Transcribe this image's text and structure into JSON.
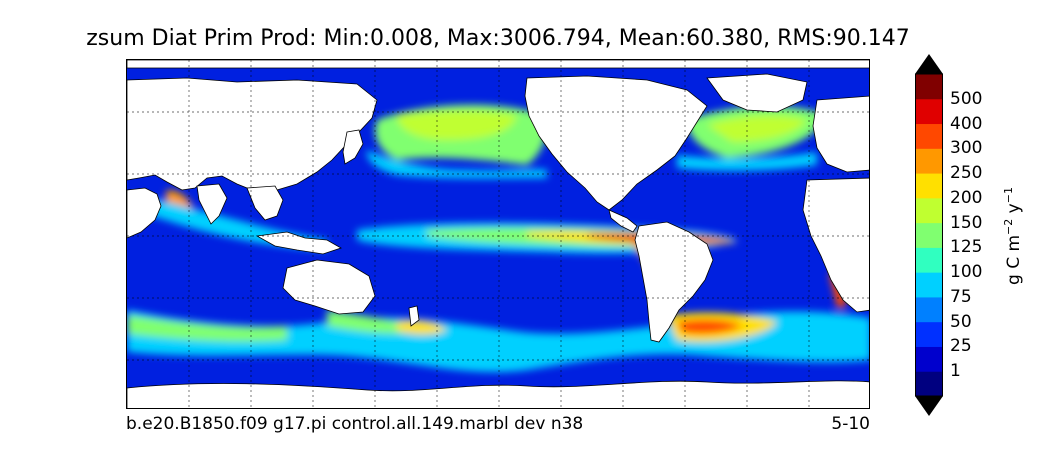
{
  "title": "zsum Diat Prim Prod: Min:0.008, Max:3006.794, Mean:60.380, RMS:90.147",
  "footer": {
    "case_name": "b.e20.B1850.f09 g17.pi control.all.149.marbl dev n38",
    "years": "5-10"
  },
  "colorbar": {
    "units_base": "g C m",
    "units_exp1": "−2",
    "units_mid": " y",
    "units_exp2": "−1",
    "levels": [
      "1",
      "25",
      "50",
      "75",
      "100",
      "125",
      "150",
      "200",
      "250",
      "300",
      "400",
      "500"
    ],
    "colors": [
      "#000080",
      "#0000cd",
      "#0030ff",
      "#0080ff",
      "#00d0ff",
      "#30ffc0",
      "#80ff70",
      "#c0ff30",
      "#ffe000",
      "#ff9800",
      "#ff4800",
      "#e00000",
      "#800000"
    ],
    "extend": "both"
  },
  "map": {
    "projection": "cylindrical",
    "ocean_base_color": "#0020e0",
    "land_color": "#ffffff",
    "gridlines": "dashed"
  }
}
